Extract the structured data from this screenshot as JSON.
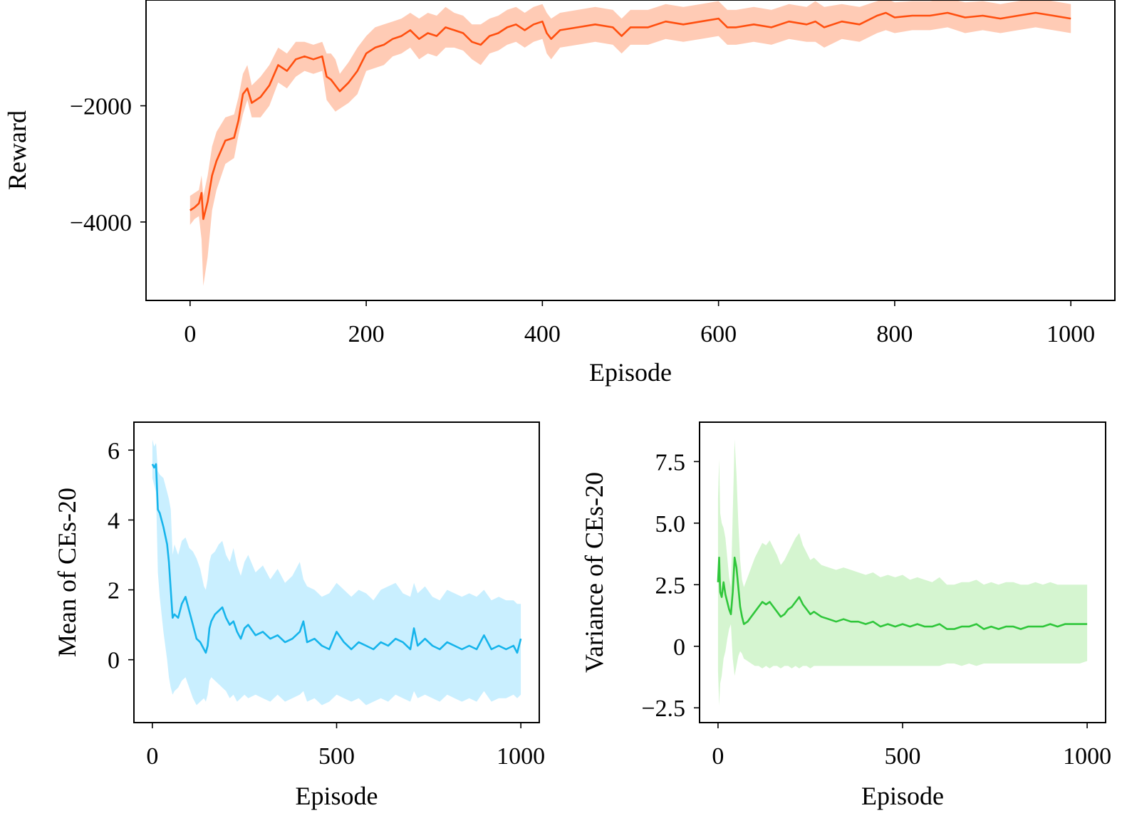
{
  "chart_data": [
    {
      "id": "reward",
      "type": "line",
      "xlabel": "Episode",
      "ylabel": "Reward",
      "xlim": [
        -50,
        1050
      ],
      "ylim": [
        -5350,
        -180
      ],
      "xticks": [
        0,
        200,
        400,
        600,
        800,
        1000
      ],
      "xtick_labels": [
        "0",
        "200",
        "400",
        "600",
        "800",
        "1000"
      ],
      "yticks": [
        -4000,
        -2000
      ],
      "ytick_labels": [
        "−4000",
        "−2000"
      ],
      "grid": false,
      "shaded_band": true,
      "series": [
        {
          "line_color": "#ff4f0f",
          "band_color": "#ffcbb5",
          "x": [
            0,
            5,
            10,
            13,
            15,
            20,
            25,
            30,
            40,
            50,
            55,
            60,
            65,
            70,
            80,
            90,
            100,
            110,
            120,
            130,
            140,
            150,
            155,
            160,
            165,
            170,
            180,
            190,
            200,
            210,
            220,
            230,
            240,
            250,
            260,
            270,
            280,
            290,
            300,
            310,
            320,
            330,
            340,
            350,
            360,
            370,
            380,
            390,
            400,
            405,
            410,
            420,
            440,
            460,
            480,
            490,
            500,
            520,
            540,
            560,
            580,
            600,
            610,
            620,
            640,
            660,
            680,
            700,
            710,
            720,
            740,
            760,
            780,
            790,
            800,
            820,
            840,
            860,
            880,
            900,
            920,
            940,
            960,
            980,
            1000
          ],
          "y": [
            -3800,
            -3750,
            -3680,
            -3500,
            -3950,
            -3650,
            -3200,
            -2950,
            -2600,
            -2550,
            -2250,
            -1800,
            -1700,
            -1950,
            -1850,
            -1650,
            -1300,
            -1400,
            -1200,
            -1150,
            -1200,
            -1150,
            -1500,
            -1550,
            -1650,
            -1750,
            -1600,
            -1400,
            -1100,
            -1000,
            -950,
            -850,
            -800,
            -700,
            -850,
            -750,
            -800,
            -650,
            -700,
            -750,
            -900,
            -950,
            -800,
            -750,
            -650,
            -600,
            -700,
            -600,
            -550,
            -750,
            -850,
            -700,
            -650,
            -600,
            -650,
            -800,
            -650,
            -650,
            -550,
            -600,
            -550,
            -500,
            -650,
            -650,
            -600,
            -650,
            -550,
            -600,
            -550,
            -650,
            -550,
            -600,
            -450,
            -400,
            -480,
            -450,
            -450,
            -400,
            -480,
            -450,
            -500,
            -450,
            -400,
            -450,
            -500
          ],
          "band_low": [
            -4050,
            -3950,
            -3900,
            -4300,
            -5100,
            -4600,
            -3800,
            -3450,
            -3000,
            -2900,
            -2500,
            -2150,
            -1900,
            -2200,
            -2200,
            -2000,
            -1600,
            -1700,
            -1500,
            -1400,
            -1450,
            -1400,
            -1900,
            -2000,
            -2100,
            -2050,
            -1950,
            -1800,
            -1400,
            -1350,
            -1300,
            -1150,
            -1100,
            -1000,
            -1200,
            -1100,
            -1150,
            -1000,
            -1000,
            -1050,
            -1200,
            -1300,
            -1100,
            -1050,
            -950,
            -900,
            -1000,
            -900,
            -850,
            -1100,
            -1200,
            -1000,
            -950,
            -900,
            -950,
            -1100,
            -950,
            -950,
            -850,
            -900,
            -850,
            -800,
            -950,
            -950,
            -900,
            -950,
            -850,
            -900,
            -900,
            -1000,
            -850,
            -900,
            -750,
            -700,
            -750,
            -700,
            -700,
            -650,
            -750,
            -700,
            -750,
            -700,
            -650,
            -700,
            -750
          ],
          "band_high": [
            -3550,
            -3500,
            -3450,
            -3200,
            -3550,
            -3200,
            -2700,
            -2450,
            -2200,
            -2150,
            -1850,
            -1450,
            -1300,
            -1650,
            -1500,
            -1300,
            -1000,
            -1100,
            -900,
            -900,
            -950,
            -900,
            -1100,
            -1100,
            -1200,
            -1450,
            -1250,
            -1000,
            -800,
            -650,
            -600,
            -550,
            -500,
            -400,
            -500,
            -400,
            -450,
            -300,
            -400,
            -450,
            -600,
            -600,
            -500,
            -450,
            -350,
            -300,
            -400,
            -300,
            -250,
            -400,
            -500,
            -400,
            -350,
            -300,
            -350,
            -500,
            -350,
            -350,
            -250,
            -300,
            -250,
            -200,
            -350,
            -350,
            -300,
            -350,
            -250,
            -300,
            -200,
            -300,
            -250,
            -300,
            -200,
            -150,
            -220,
            -200,
            -200,
            -150,
            -220,
            -200,
            -250,
            -200,
            -150,
            -200,
            -250
          ]
        }
      ]
    },
    {
      "id": "mean",
      "type": "line",
      "xlabel": "Episode",
      "ylabel": "Mean of CEs-20",
      "xlim": [
        -50,
        1050
      ],
      "ylim": [
        -1.8,
        6.8
      ],
      "xticks": [
        0,
        500,
        1000
      ],
      "xtick_labels": [
        "0",
        "500",
        "1000"
      ],
      "yticks": [
        0,
        2,
        4,
        6
      ],
      "ytick_labels": [
        "0",
        "2",
        "4",
        "6"
      ],
      "grid": false,
      "shaded_band": true,
      "series": [
        {
          "line_color": "#16b4eb",
          "band_color": "#c9efff",
          "x": [
            0,
            5,
            10,
            15,
            20,
            30,
            40,
            45,
            50,
            55,
            60,
            70,
            80,
            90,
            100,
            110,
            120,
            130,
            140,
            145,
            150,
            155,
            160,
            170,
            180,
            190,
            200,
            210,
            220,
            230,
            240,
            250,
            260,
            280,
            300,
            320,
            340,
            360,
            380,
            400,
            410,
            420,
            440,
            460,
            480,
            500,
            520,
            540,
            560,
            580,
            600,
            620,
            640,
            660,
            680,
            700,
            710,
            720,
            740,
            760,
            780,
            800,
            820,
            840,
            860,
            880,
            900,
            920,
            940,
            960,
            980,
            990,
            1000
          ],
          "y": [
            5.6,
            5.5,
            5.6,
            4.3,
            4.2,
            3.8,
            3.3,
            2.8,
            2.0,
            1.2,
            1.3,
            1.2,
            1.6,
            1.8,
            1.4,
            1.0,
            0.6,
            0.5,
            0.3,
            0.2,
            0.4,
            0.9,
            1.1,
            1.3,
            1.4,
            1.5,
            1.2,
            1.0,
            1.1,
            0.8,
            0.6,
            0.9,
            1.0,
            0.7,
            0.8,
            0.6,
            0.7,
            0.5,
            0.6,
            0.8,
            1.1,
            0.5,
            0.6,
            0.4,
            0.3,
            0.8,
            0.5,
            0.3,
            0.5,
            0.4,
            0.3,
            0.5,
            0.4,
            0.6,
            0.5,
            0.3,
            0.9,
            0.4,
            0.6,
            0.4,
            0.3,
            0.5,
            0.4,
            0.3,
            0.4,
            0.3,
            0.7,
            0.3,
            0.4,
            0.3,
            0.4,
            0.2,
            0.6
          ],
          "band_low": [
            5.2,
            5.0,
            4.8,
            2.5,
            1.8,
            0.8,
            0.0,
            -0.5,
            -0.8,
            -1.0,
            -0.9,
            -0.8,
            -0.6,
            -0.5,
            -0.8,
            -1.1,
            -1.3,
            -1.2,
            -1.1,
            -1.2,
            -1.0,
            -0.6,
            -0.5,
            -0.6,
            -0.7,
            -0.8,
            -0.9,
            -1.1,
            -1.0,
            -1.2,
            -1.1,
            -1.0,
            -1.1,
            -1.0,
            -1.1,
            -1.2,
            -1.0,
            -1.2,
            -1.1,
            -1.0,
            -0.9,
            -1.2,
            -1.1,
            -1.3,
            -1.2,
            -1.0,
            -1.1,
            -1.2,
            -1.1,
            -1.3,
            -1.2,
            -1.1,
            -1.2,
            -1.0,
            -1.1,
            -1.2,
            -0.9,
            -1.1,
            -1.0,
            -1.1,
            -1.2,
            -1.0,
            -1.1,
            -1.2,
            -1.1,
            -1.2,
            -0.9,
            -1.2,
            -1.1,
            -1.1,
            -1.0,
            -1.1,
            -1.0
          ],
          "band_high": [
            6.3,
            6.1,
            6.2,
            5.4,
            5.3,
            5.2,
            4.8,
            4.6,
            4.3,
            3.0,
            3.3,
            3.0,
            3.4,
            3.5,
            3.2,
            3.1,
            2.9,
            2.6,
            2.1,
            2.0,
            2.3,
            2.8,
            3.0,
            3.1,
            3.3,
            3.4,
            3.0,
            2.8,
            3.2,
            2.7,
            2.4,
            2.8,
            3.0,
            2.5,
            2.7,
            2.3,
            2.6,
            2.2,
            2.4,
            2.8,
            2.3,
            2.1,
            2.0,
            1.8,
            1.9,
            2.2,
            2.0,
            1.8,
            2.0,
            1.9,
            1.7,
            2.0,
            2.1,
            2.2,
            1.9,
            1.8,
            2.2,
            1.9,
            2.1,
            1.8,
            1.7,
            2.0,
            1.9,
            1.8,
            1.9,
            1.8,
            2.0,
            1.7,
            1.8,
            1.7,
            1.7,
            1.6,
            1.6
          ]
        }
      ]
    },
    {
      "id": "variance",
      "type": "line",
      "xlabel": "Episode",
      "ylabel": "Variance of CEs-20",
      "xlim": [
        -50,
        1050
      ],
      "ylim": [
        -3.1,
        9.1
      ],
      "xticks": [
        0,
        500,
        1000
      ],
      "xtick_labels": [
        "0",
        "500",
        "1000"
      ],
      "yticks": [
        -2.5,
        0,
        2.5,
        5.0,
        7.5
      ],
      "ytick_labels": [
        "−2.5",
        "0",
        "2.5",
        "5.0",
        "7.5"
      ],
      "grid": false,
      "shaded_band": true,
      "series": [
        {
          "line_color": "#2fc63a",
          "band_color": "#d5f5d0",
          "x": [
            0,
            3,
            6,
            10,
            15,
            20,
            25,
            30,
            35,
            40,
            45,
            50,
            55,
            60,
            65,
            70,
            80,
            90,
            100,
            110,
            120,
            130,
            140,
            150,
            160,
            170,
            180,
            190,
            200,
            210,
            220,
            230,
            240,
            250,
            260,
            280,
            300,
            320,
            340,
            360,
            380,
            400,
            420,
            440,
            460,
            480,
            500,
            520,
            540,
            560,
            580,
            600,
            620,
            640,
            660,
            680,
            700,
            720,
            740,
            760,
            780,
            800,
            820,
            840,
            860,
            880,
            900,
            920,
            940,
            960,
            980,
            1000
          ],
          "y": [
            2.6,
            3.6,
            2.2,
            2.0,
            2.6,
            2.1,
            1.8,
            1.5,
            1.3,
            2.2,
            3.6,
            3.2,
            2.4,
            1.6,
            1.2,
            0.9,
            1.0,
            1.2,
            1.4,
            1.6,
            1.8,
            1.7,
            1.8,
            1.6,
            1.4,
            1.2,
            1.3,
            1.5,
            1.6,
            1.8,
            2.0,
            1.7,
            1.5,
            1.3,
            1.4,
            1.2,
            1.1,
            1.0,
            1.1,
            1.0,
            1.0,
            0.9,
            1.0,
            0.8,
            0.9,
            0.8,
            0.9,
            0.8,
            0.9,
            0.8,
            0.8,
            0.9,
            0.7,
            0.7,
            0.8,
            0.8,
            0.9,
            0.7,
            0.8,
            0.7,
            0.8,
            0.8,
            0.7,
            0.8,
            0.8,
            0.8,
            0.9,
            0.8,
            0.9,
            0.9,
            0.9,
            0.9
          ],
          "band_low": [
            -1.0,
            -2.4,
            -1.5,
            -1.2,
            -0.5,
            -0.2,
            0.3,
            0.7,
            0.9,
            -0.5,
            -1.2,
            -0.8,
            -0.4,
            -0.2,
            -0.3,
            -0.5,
            -0.6,
            -0.7,
            -0.8,
            -0.8,
            -0.9,
            -0.8,
            -0.9,
            -0.8,
            -0.8,
            -0.9,
            -0.8,
            -0.8,
            -0.9,
            -0.8,
            -0.9,
            -0.8,
            -0.8,
            -0.9,
            -0.8,
            -0.8,
            -0.8,
            -0.8,
            -0.8,
            -0.8,
            -0.8,
            -0.8,
            -0.8,
            -0.8,
            -0.8,
            -0.8,
            -0.8,
            -0.8,
            -0.8,
            -0.8,
            -0.8,
            -0.8,
            -0.7,
            -0.7,
            -0.8,
            -0.7,
            -0.8,
            -0.7,
            -0.7,
            -0.7,
            -0.7,
            -0.7,
            -0.7,
            -0.7,
            -0.7,
            -0.7,
            -0.7,
            -0.7,
            -0.7,
            -0.7,
            -0.7,
            -0.6
          ],
          "band_high": [
            6.0,
            7.6,
            5.4,
            5.0,
            4.8,
            4.4,
            3.6,
            2.8,
            2.4,
            5.4,
            8.4,
            7.0,
            5.0,
            3.5,
            2.7,
            2.4,
            2.8,
            3.2,
            3.6,
            3.9,
            4.2,
            4.1,
            4.3,
            4.0,
            3.7,
            3.3,
            3.5,
            3.8,
            4.1,
            4.4,
            4.6,
            4.1,
            3.8,
            3.5,
            3.6,
            3.3,
            3.2,
            3.1,
            3.2,
            3.1,
            3.0,
            2.9,
            3.0,
            2.8,
            2.9,
            2.8,
            2.9,
            2.7,
            2.8,
            2.7,
            2.6,
            2.8,
            2.5,
            2.5,
            2.6,
            2.6,
            2.7,
            2.5,
            2.6,
            2.5,
            2.6,
            2.6,
            2.5,
            2.5,
            2.6,
            2.5,
            2.6,
            2.5,
            2.5,
            2.5,
            2.5,
            2.5
          ]
        }
      ]
    }
  ]
}
